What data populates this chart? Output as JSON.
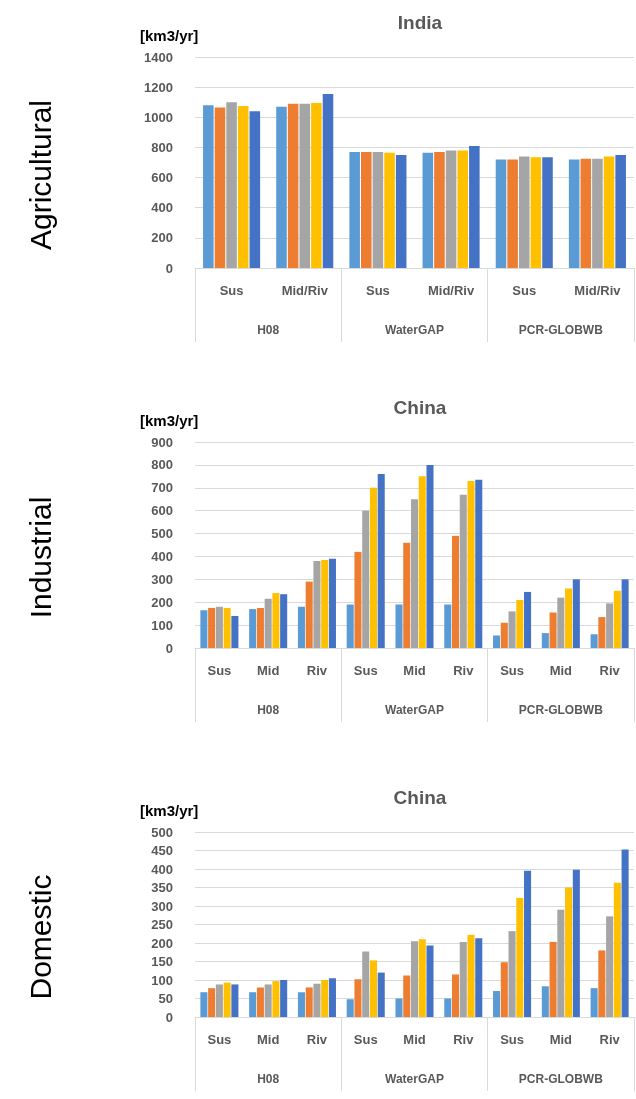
{
  "chart_data": [
    {
      "type": "bar",
      "title": "India",
      "subtitle": "Agricultural",
      "ylabel": "[km3/yr]",
      "annotations": [
        "H08",
        "WaterGAP",
        "PCR-GLOBWB"
      ],
      "categories": [
        "Sus",
        "Mid/Riv",
        "Sus",
        "Mid/Riv",
        "Sus",
        "Mid/Riv"
      ],
      "series": [
        {
          "color": "#5b9bd5",
          "values": [
            1080,
            1070,
            770,
            765,
            720,
            720
          ]
        },
        {
          "color": "#ed7d31",
          "values": [
            1065,
            1090,
            770,
            770,
            720,
            725
          ]
        },
        {
          "color": "#a5a5a5",
          "values": [
            1100,
            1090,
            770,
            780,
            740,
            725
          ]
        },
        {
          "color": "#ffc000",
          "values": [
            1075,
            1095,
            765,
            780,
            735,
            740
          ]
        },
        {
          "color": "#4472c4",
          "values": [
            1040,
            1155,
            750,
            810,
            735,
            750
          ]
        }
      ],
      "ylim": [
        0,
        1400
      ],
      "yticks": [
        0,
        200,
        400,
        600,
        800,
        1000,
        1200,
        1400
      ],
      "grid": "y"
    },
    {
      "type": "bar",
      "title": "China",
      "subtitle": "Industrial",
      "ylabel": "[km3/yr]",
      "annotations": [
        "H08",
        "WaterGAP",
        "PCR-GLOBWB"
      ],
      "categories": [
        "Sus",
        "Mid",
        "Riv",
        "Sus",
        "Mid",
        "Riv",
        "Sus",
        "Mid",
        "Riv"
      ],
      "series": [
        {
          "color": "#5b9bd5",
          "values": [
            165,
            170,
            180,
            190,
            190,
            190,
            55,
            65,
            60
          ]
        },
        {
          "color": "#ed7d31",
          "values": [
            175,
            175,
            290,
            420,
            460,
            490,
            110,
            155,
            135
          ]
        },
        {
          "color": "#a5a5a5",
          "values": [
            180,
            215,
            380,
            600,
            650,
            670,
            160,
            220,
            195
          ]
        },
        {
          "color": "#ffc000",
          "values": [
            175,
            240,
            385,
            700,
            750,
            730,
            210,
            260,
            250
          ]
        },
        {
          "color": "#4472c4",
          "values": [
            140,
            235,
            390,
            760,
            800,
            735,
            245,
            300,
            300
          ]
        }
      ],
      "ylim": [
        0,
        900
      ],
      "yticks": [
        0,
        100,
        200,
        300,
        400,
        500,
        600,
        700,
        800,
        900
      ],
      "grid": "y"
    },
    {
      "type": "bar",
      "title": "China",
      "subtitle": "Domestic",
      "ylabel": "[km3/yr]",
      "annotations": [
        "H08",
        "WaterGAP",
        "PCR-GLOBWB"
      ],
      "categories": [
        "Sus",
        "Mid",
        "Riv",
        "Sus",
        "Mid",
        "Riv",
        "Sus",
        "Mid",
        "Riv"
      ],
      "series": [
        {
          "color": "#5b9bd5",
          "values": [
            67,
            67,
            67,
            48,
            50,
            50,
            70,
            83,
            78
          ]
        },
        {
          "color": "#ed7d31",
          "values": [
            78,
            80,
            80,
            102,
            112,
            115,
            148,
            203,
            180
          ]
        },
        {
          "color": "#a5a5a5",
          "values": [
            88,
            88,
            90,
            177,
            205,
            203,
            232,
            290,
            272
          ]
        },
        {
          "color": "#ffc000",
          "values": [
            93,
            97,
            100,
            153,
            210,
            222,
            322,
            350,
            363
          ]
        },
        {
          "color": "#4472c4",
          "values": [
            88,
            100,
            105,
            120,
            193,
            213,
            395,
            398,
            453
          ]
        }
      ],
      "ylim": [
        0,
        500
      ],
      "yticks": [
        0,
        50,
        100,
        150,
        200,
        250,
        300,
        350,
        400,
        450,
        500
      ],
      "grid": "y"
    }
  ]
}
